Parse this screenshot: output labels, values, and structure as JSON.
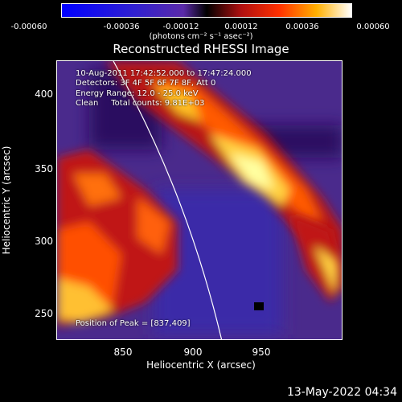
{
  "colorbar": {
    "ticks": [
      "-0.00060",
      "-0.00036",
      "-0.00012",
      "0.00012",
      "0.00036",
      "0.00060"
    ],
    "units": "(photons cm⁻² s⁻¹ asec⁻²)"
  },
  "title": "Reconstructed RHESSI Image",
  "annotations": {
    "time": "10-Aug-2011 17:42:52.000 to 17:47:24.000",
    "detectors": "Detectors: 3F 4F 5F 6F 7F 8F, Att 0",
    "energy": "Energy Range: 12.0 - 25.0 keV",
    "clean": "Clean     Total counts: 9.81E+03",
    "peak": "Position of Peak = [837,409]"
  },
  "axes": {
    "xlabel": "Heliocentric X (arcsec)",
    "ylabel": "Heliocentric Y (arcsec)",
    "xticks": [
      "850",
      "900",
      "950"
    ],
    "yticks": [
      "400",
      "350",
      "300",
      "250"
    ]
  },
  "footer_date": "13-May-2022 04:34",
  "colors": {
    "background": "#000000",
    "text": "#ffffff",
    "limb": "#ffffff"
  }
}
